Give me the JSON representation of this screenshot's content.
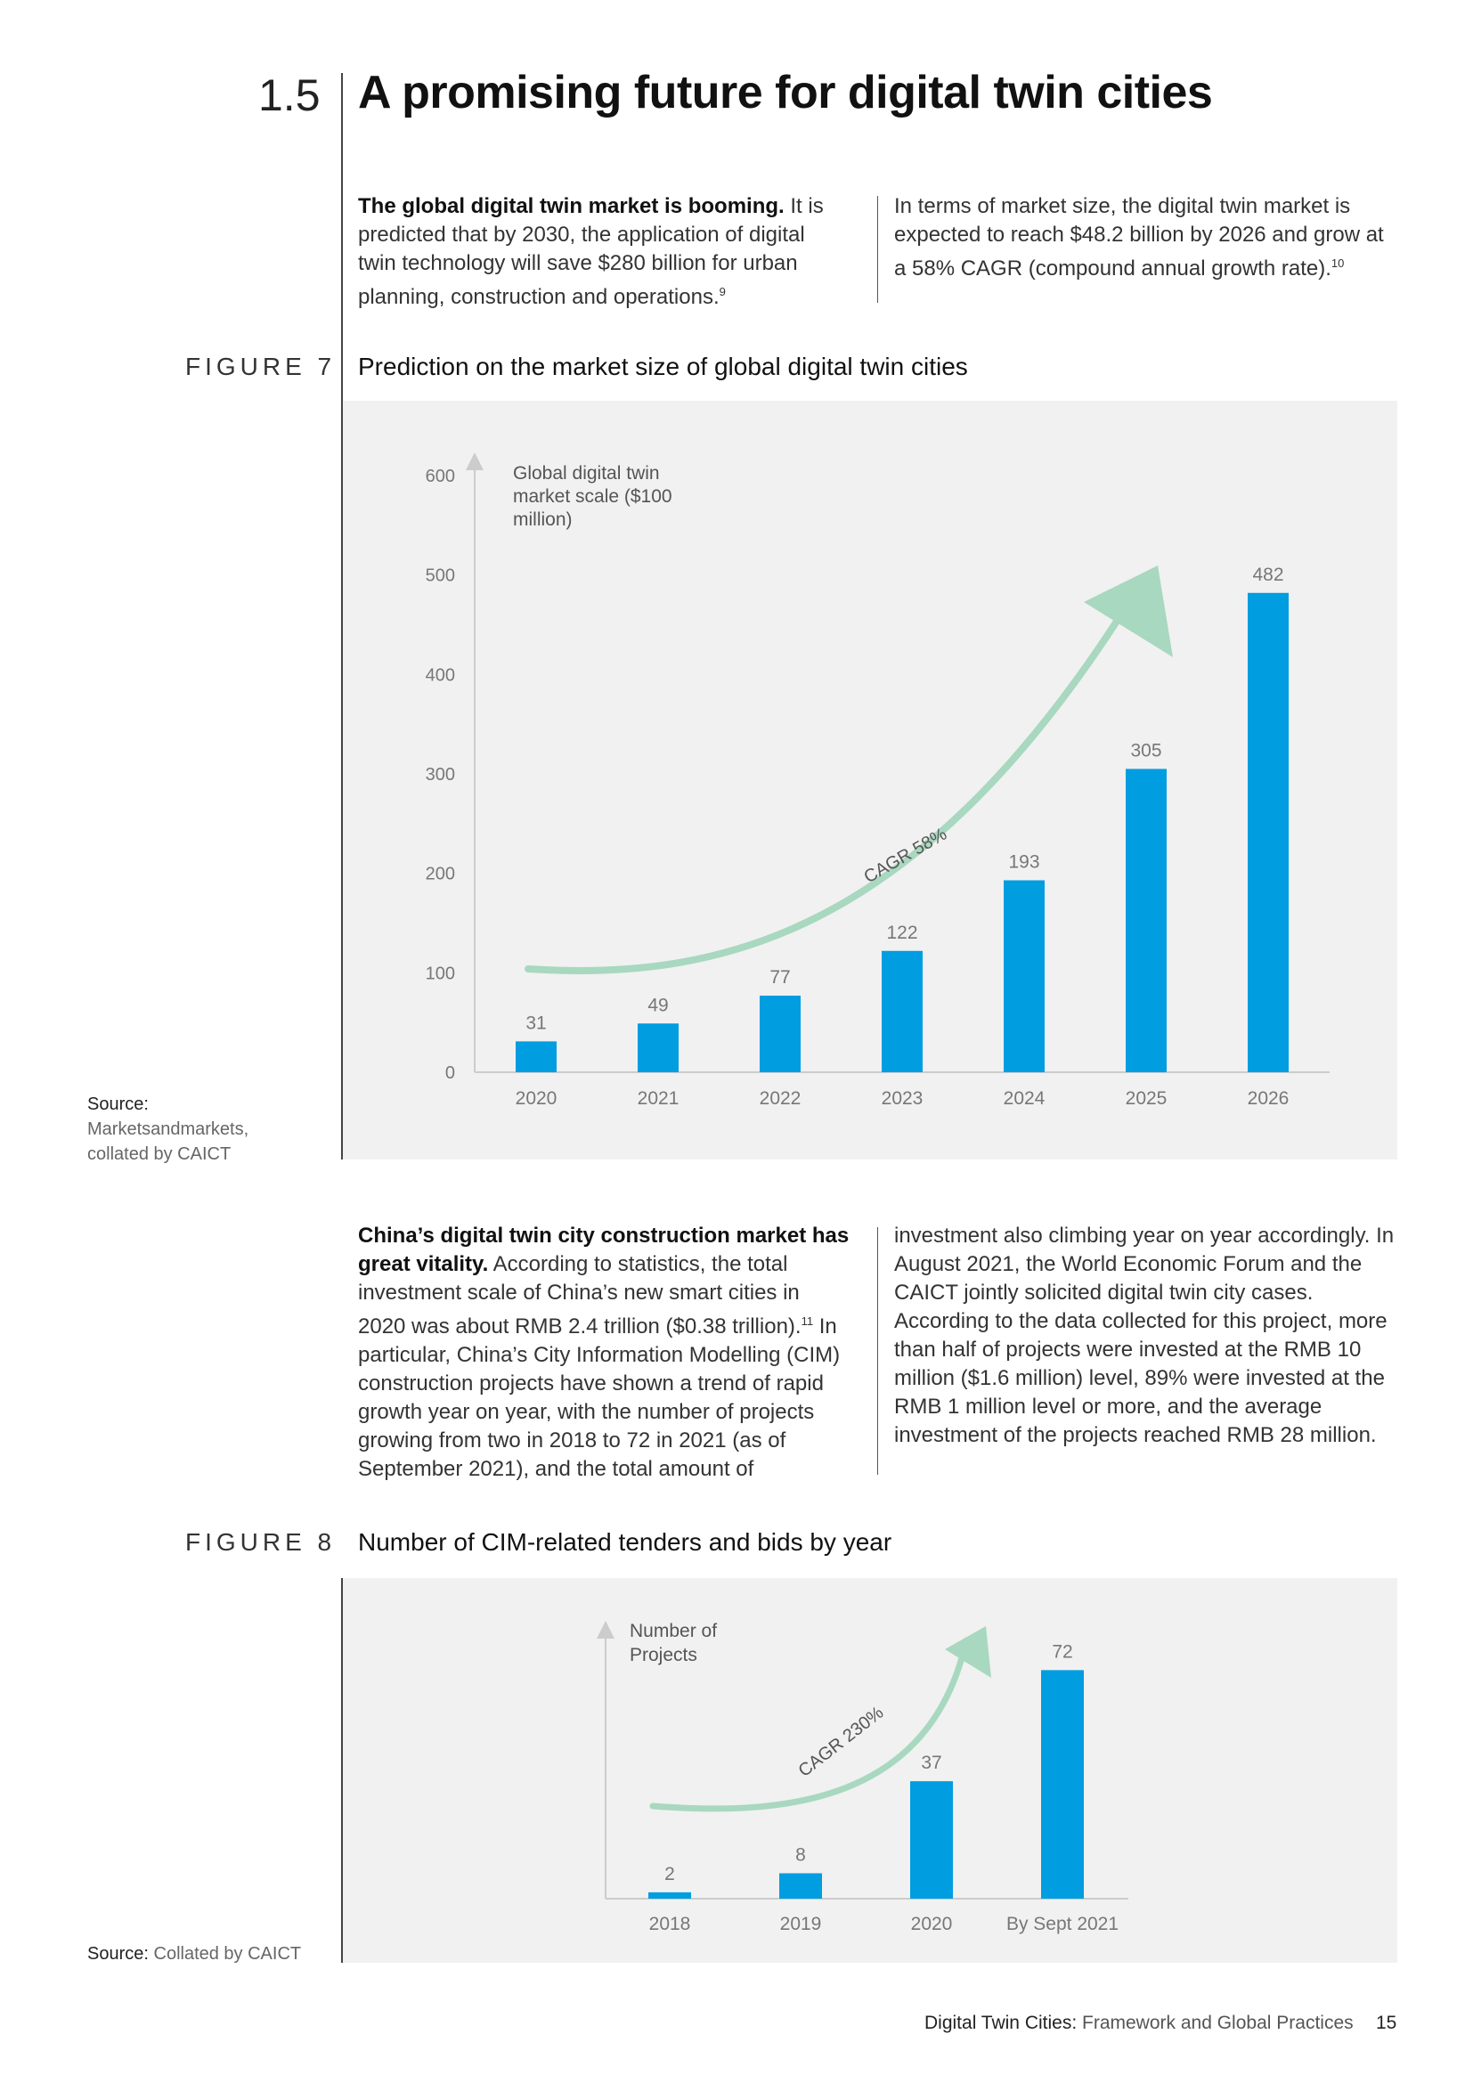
{
  "section": {
    "number": "1.5",
    "title": "A promising future for digital twin cities"
  },
  "intro": {
    "left_bold": "The global digital twin market is booming.",
    "left_text": " It is predicted that by 2030, the application of digital twin technology will save $280 billion for urban planning, construction and operations.",
    "left_ref": "9",
    "right_text": "In terms of market size, the digital twin market is expected to reach $48.2 billion by 2026 and grow at a 58% CAGR (compound annual growth rate).",
    "right_ref": "10"
  },
  "figure7": {
    "label": "FIGURE 7",
    "title": "Prediction on the market size of global digital twin cities",
    "source_label": "Source:",
    "source_text": "Marketsandmarkets, collated by CAICT",
    "cagr_label": "CAGR 58%"
  },
  "middle": {
    "left_bold": "China’s digital twin city construction market has great vitality.",
    "left_text_1": " According to statistics, the total investment scale of China’s new smart cities in 2020 was about RMB 2.4 trillion ($0.38 trillion).",
    "left_ref": "11",
    "left_text_2": " In particular, China’s City Information Modelling (CIM) construction projects have shown a trend of rapid growth year on year, with the number of projects growing from two in 2018 to 72 in 2021 (as of September 2021), and the total amount of",
    "right_text": "investment also climbing year on year accordingly. In August 2021, the World Economic Forum and the CAICT jointly solicited digital twin city cases. According to the data collected for this project, more than half of projects were invested at the RMB 10 million ($1.6 million) level, 89% were invested at the RMB 1 million level or more, and the average investment of the projects reached RMB 28 million."
  },
  "figure8": {
    "label": "FIGURE 8",
    "title": "Number of CIM-related tenders and bids by year",
    "source_label": "Source:",
    "source_text": "Collated by CAICT",
    "cagr_label": "CAGR 230%"
  },
  "footer": {
    "title_bold": "Digital Twin Cities:",
    "title_rest": " Framework and Global Practices",
    "page": "15"
  },
  "chart_data": [
    {
      "type": "bar",
      "title": "Prediction on the market size of global digital twin cities",
      "ylabel": "Global digital twin market scale ($100 million)",
      "xlabel": "",
      "categories": [
        "2020",
        "2021",
        "2022",
        "2023",
        "2024",
        "2025",
        "2026"
      ],
      "values": [
        31,
        49,
        77,
        122,
        193,
        305,
        482
      ],
      "ylim": [
        0,
        600
      ],
      "yticks": [
        0,
        100,
        200,
        300,
        400,
        500,
        600
      ],
      "annotation": "CAGR 58%",
      "colors": {
        "bar": "#009de0",
        "arrow": "#a8d8bf",
        "axis": "#cccccc",
        "label": "#777777"
      }
    },
    {
      "type": "bar",
      "title": "Number of CIM-related tenders and bids by year",
      "ylabel": "Number of Projects",
      "xlabel": "",
      "categories": [
        "2018",
        "2019",
        "2020",
        "By Sept 2021"
      ],
      "values": [
        2,
        8,
        37,
        72
      ],
      "ylim": [
        0,
        78
      ],
      "annotation": "CAGR 230%",
      "colors": {
        "bar": "#009de0",
        "arrow": "#a8d8bf",
        "axis": "#cccccc",
        "label": "#777777"
      }
    }
  ]
}
